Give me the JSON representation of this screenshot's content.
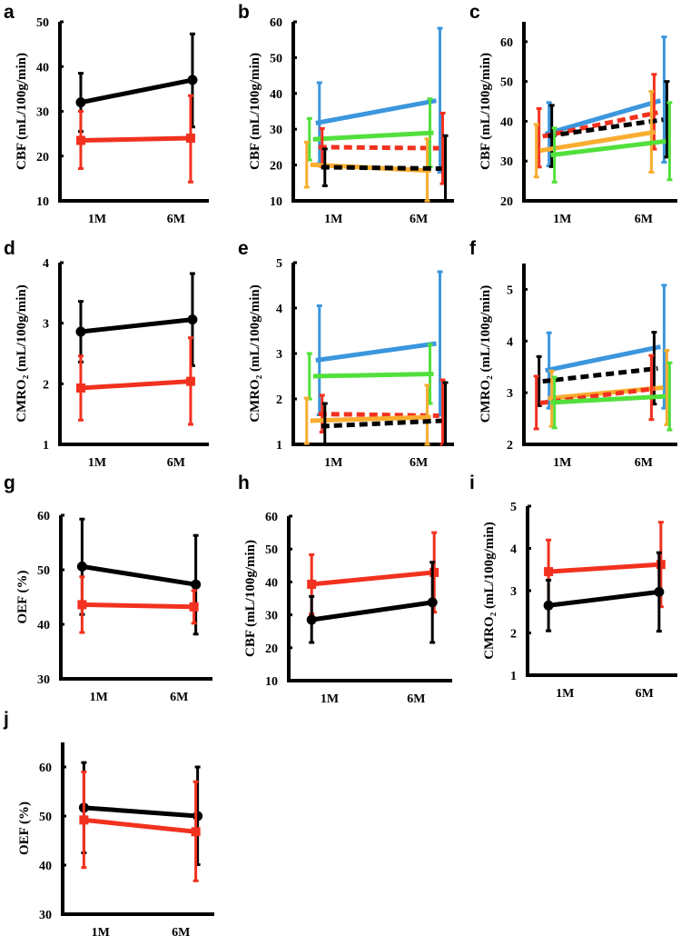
{
  "colors": {
    "black": "#000000",
    "red": "#f2311f",
    "blue": "#3b96dd",
    "green": "#52e03c",
    "orange": "#f8ad30"
  },
  "chart_data": [
    {
      "panel": "a",
      "type": "line",
      "ylabel": "CBF (mL/100g/min)",
      "categories": [
        "1M",
        "6M"
      ],
      "ylim": [
        10,
        50
      ],
      "yticks": [
        "10",
        "20",
        "30",
        "40",
        "50"
      ],
      "series": [
        {
          "color": "black",
          "style": "solid",
          "marker": "circle",
          "values": [
            32,
            37
          ],
          "err": [
            [
              25.5,
              38.5
            ],
            [
              26.5,
              47.3
            ]
          ]
        },
        {
          "color": "red",
          "style": "solid",
          "marker": "square",
          "values": [
            23.5,
            24
          ],
          "err": [
            [
              17.2,
              30
            ],
            [
              14.2,
              33.5
            ]
          ]
        }
      ]
    },
    {
      "panel": "b",
      "type": "line",
      "ylabel": "CBF (mL/100g/min)",
      "categories": [
        "1M",
        "6M"
      ],
      "ylim": [
        10,
        60
      ],
      "yticks": [
        "10",
        "20",
        "30",
        "40",
        "50",
        "60"
      ],
      "series": [
        {
          "color": "blue",
          "style": "solid",
          "marker": "none",
          "values": [
            31.7,
            38
          ],
          "err": [
            [
              20.5,
              43
            ],
            [
              18,
              58.2
            ]
          ]
        },
        {
          "color": "green",
          "style": "solid",
          "marker": "none",
          "values": [
            27.2,
            29
          ],
          "err": [
            [
              21.4,
              33
            ],
            [
              19.5,
              38.5
            ]
          ]
        },
        {
          "color": "red",
          "style": "dashed",
          "marker": "none",
          "values": [
            25,
            24.7
          ],
          "err": [
            [
              19.5,
              30.2
            ],
            [
              14.8,
              34.5
            ]
          ]
        },
        {
          "color": "orange",
          "style": "solid",
          "marker": "none",
          "values": [
            20.1,
            18.4
          ],
          "err": [
            [
              13.8,
              26.4
            ],
            [
              10,
              27.3
            ]
          ]
        },
        {
          "color": "black",
          "style": "dashed",
          "marker": "none",
          "values": [
            19.4,
            19
          ],
          "err": [
            [
              14.2,
              24.5
            ],
            [
              10,
              28.2
            ]
          ]
        }
      ]
    },
    {
      "panel": "c",
      "type": "line",
      "ylabel": "CBF (mL/100g/min)",
      "categories": [
        "1M",
        "6M"
      ],
      "ylim": [
        20,
        65
      ],
      "yticks": [
        "20",
        "30",
        "40",
        "50",
        "60"
      ],
      "series": [
        {
          "color": "blue",
          "style": "solid",
          "marker": "none",
          "values": [
            36.8,
            45.2
          ],
          "err": [
            [
              28.8,
              44.7
            ],
            [
              29.7,
              61.2
            ]
          ]
        },
        {
          "color": "red",
          "style": "dashed",
          "marker": "none",
          "values": [
            36.2,
            42.2
          ],
          "err": [
            [
              28.5,
              43.2
            ],
            [
              33,
              51.8
            ]
          ]
        },
        {
          "color": "black",
          "style": "dashed",
          "marker": "none",
          "values": [
            36.3,
            40.4
          ],
          "err": [
            [
              28.6,
              44
            ],
            [
              31,
              50
            ]
          ]
        },
        {
          "color": "orange",
          "style": "solid",
          "marker": "none",
          "values": [
            32.6,
            37.3
          ],
          "err": [
            [
              26,
              39.2
            ],
            [
              27.2,
              47.5
            ]
          ]
        },
        {
          "color": "green",
          "style": "solid",
          "marker": "none",
          "values": [
            31.5,
            35
          ],
          "err": [
            [
              24.7,
              38.3
            ],
            [
              25.3,
              44.7
            ]
          ]
        }
      ]
    },
    {
      "panel": "d",
      "type": "line",
      "ylabel": "CMRO₂ (mL/100g/min)",
      "categories": [
        "1M",
        "6M"
      ],
      "ylim": [
        1,
        4
      ],
      "yticks": [
        "1",
        "2",
        "3",
        "4"
      ],
      "series": [
        {
          "color": "black",
          "style": "solid",
          "marker": "circle",
          "values": [
            2.86,
            3.06
          ],
          "err": [
            [
              2.36,
              3.36
            ],
            [
              2.3,
              3.82
            ]
          ]
        },
        {
          "color": "red",
          "style": "solid",
          "marker": "square",
          "values": [
            1.93,
            2.04
          ],
          "err": [
            [
              1.4,
              2.46
            ],
            [
              1.33,
              2.76
            ]
          ]
        }
      ]
    },
    {
      "panel": "e",
      "type": "line",
      "ylabel": "CMRO₂ (mL/100g/min)",
      "categories": [
        "1M",
        "6M"
      ],
      "ylim": [
        1,
        5
      ],
      "yticks": [
        "1",
        "2",
        "3",
        "4",
        "5"
      ],
      "series": [
        {
          "color": "blue",
          "style": "solid",
          "marker": "none",
          "values": [
            2.85,
            3.22
          ],
          "err": [
            [
              1.65,
              4.05
            ],
            [
              1.64,
              4.8
            ]
          ]
        },
        {
          "color": "green",
          "style": "solid",
          "marker": "none",
          "values": [
            2.5,
            2.55
          ],
          "err": [
            [
              2.0,
              3.0
            ],
            [
              1.9,
              3.2
            ]
          ]
        },
        {
          "color": "red",
          "style": "dashed",
          "marker": "none",
          "values": [
            1.67,
            1.63
          ],
          "err": [
            [
              1.27,
              2.08
            ],
            [
              1.0,
              2.42
            ]
          ]
        },
        {
          "color": "orange",
          "style": "solid",
          "marker": "none",
          "values": [
            1.52,
            1.6
          ],
          "err": [
            [
              1.02,
              2.02
            ],
            [
              1.0,
              2.3
            ]
          ]
        },
        {
          "color": "black",
          "style": "dashed",
          "marker": "none",
          "values": [
            1.4,
            1.52
          ],
          "err": [
            [
              1.0,
              1.9
            ],
            [
              1.0,
              2.36
            ]
          ]
        }
      ]
    },
    {
      "panel": "f",
      "type": "line",
      "ylabel": "CMRO₂ (mL/100g/min)",
      "categories": [
        "1M",
        "6M"
      ],
      "ylim": [
        2,
        5.5
      ],
      "yticks": [
        "2",
        "3",
        "4",
        "5"
      ],
      "series": [
        {
          "color": "blue",
          "style": "solid",
          "marker": "none",
          "values": [
            3.43,
            3.89
          ],
          "err": [
            [
              2.7,
              4.16
            ],
            [
              2.7,
              5.08
            ]
          ]
        },
        {
          "color": "black",
          "style": "dashed",
          "marker": "none",
          "values": [
            3.22,
            3.47
          ],
          "err": [
            [
              2.75,
              3.7
            ],
            [
              2.78,
              4.17
            ]
          ]
        },
        {
          "color": "orange",
          "style": "solid",
          "marker": "none",
          "values": [
            2.89,
            3.1
          ],
          "err": [
            [
              2.35,
              3.42
            ],
            [
              2.38,
              3.82
            ]
          ]
        },
        {
          "color": "red",
          "style": "dashed",
          "marker": "none",
          "values": [
            2.8,
            3.08
          ],
          "err": [
            [
              2.3,
              3.32
            ],
            [
              2.48,
              3.72
            ]
          ]
        },
        {
          "color": "green",
          "style": "solid",
          "marker": "none",
          "values": [
            2.81,
            2.93
          ],
          "err": [
            [
              2.32,
              3.3
            ],
            [
              2.28,
              3.58
            ]
          ]
        }
      ]
    },
    {
      "panel": "g",
      "type": "line",
      "ylabel": "OEF (%)",
      "categories": [
        "1M",
        "6M"
      ],
      "ylim": [
        30,
        60
      ],
      "yticks": [
        "30",
        "40",
        "50",
        "60"
      ],
      "series": [
        {
          "color": "black",
          "style": "solid",
          "marker": "circle",
          "values": [
            50.6,
            47.3
          ],
          "err": [
            [
              41.8,
              59.3
            ],
            [
              38.2,
              56.3
            ]
          ]
        },
        {
          "color": "red",
          "style": "solid",
          "marker": "square",
          "values": [
            43.6,
            43.2
          ],
          "err": [
            [
              38.5,
              48.7
            ],
            [
              40.2,
              46.2
            ]
          ]
        }
      ]
    },
    {
      "panel": "h",
      "type": "line",
      "ylabel": "CBF (mL/100g/min)",
      "categories": [
        "1M",
        "6M"
      ],
      "ylim": [
        10,
        60
      ],
      "yticks": [
        "10",
        "20",
        "30",
        "40",
        "50",
        "60"
      ],
      "series": [
        {
          "color": "red",
          "style": "solid",
          "marker": "square",
          "values": [
            39.3,
            42.9
          ],
          "err": [
            [
              30.3,
              48.3
            ],
            [
              30.8,
              55
            ]
          ]
        },
        {
          "color": "black",
          "style": "solid",
          "marker": "circle",
          "values": [
            28.5,
            33.8
          ],
          "err": [
            [
              21.6,
              35.6
            ],
            [
              21.6,
              46
            ]
          ]
        }
      ]
    },
    {
      "panel": "i",
      "type": "line",
      "ylabel": "CMRO₂ (mL/100g/min)",
      "categories": [
        "1M",
        "6M"
      ],
      "ylim": [
        1,
        5
      ],
      "yticks": [
        "1",
        "2",
        "3",
        "4",
        "5"
      ],
      "series": [
        {
          "color": "red",
          "style": "solid",
          "marker": "square",
          "values": [
            3.45,
            3.62
          ],
          "err": [
            [
              2.7,
              4.2
            ],
            [
              2.62,
              4.62
            ]
          ]
        },
        {
          "color": "black",
          "style": "solid",
          "marker": "circle",
          "values": [
            2.65,
            2.97
          ],
          "err": [
            [
              2.05,
              3.25
            ],
            [
              2.04,
              3.9
            ]
          ]
        }
      ]
    },
    {
      "panel": "j",
      "type": "line",
      "ylabel": "OEF (%)",
      "categories": [
        "1M",
        "6M"
      ],
      "ylim": [
        30,
        65
      ],
      "yticks": [
        "30",
        "40",
        "50",
        "60"
      ],
      "series": [
        {
          "color": "black",
          "style": "solid",
          "marker": "circle",
          "values": [
            51.7,
            50
          ],
          "err": [
            [
              42.5,
              60.9
            ],
            [
              40.1,
              60
            ]
          ]
        },
        {
          "color": "red",
          "style": "solid",
          "marker": "square",
          "values": [
            49.2,
            46.8
          ],
          "err": [
            [
              39.5,
              59
            ],
            [
              36.8,
              57
            ]
          ]
        }
      ]
    }
  ]
}
